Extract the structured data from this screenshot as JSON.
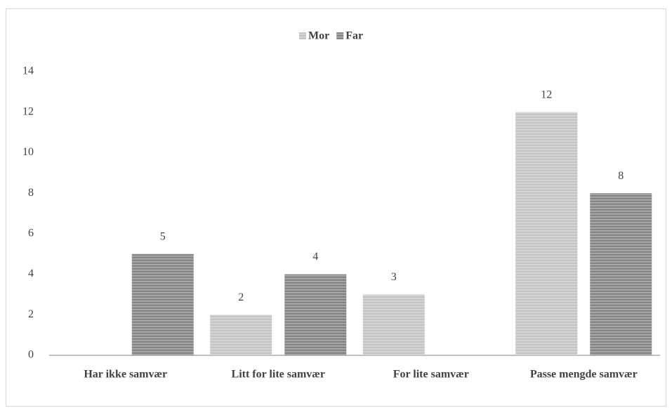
{
  "chart_data": {
    "type": "bar",
    "categories": [
      "Har ikke samvær",
      "Litt for lite samvær",
      "For lite samvær",
      "Passe mengde samvær"
    ],
    "series": [
      {
        "name": "Mor",
        "color": "#c4c4c4",
        "values": [
          null,
          2,
          3,
          12
        ]
      },
      {
        "name": "Far",
        "color": "#858585",
        "values": [
          5,
          4,
          null,
          8
        ]
      }
    ],
    "ylim": [
      0,
      14
    ],
    "yticks": [
      0,
      2,
      4,
      6,
      8,
      10,
      12,
      14
    ],
    "grid": false,
    "legend": "top"
  }
}
